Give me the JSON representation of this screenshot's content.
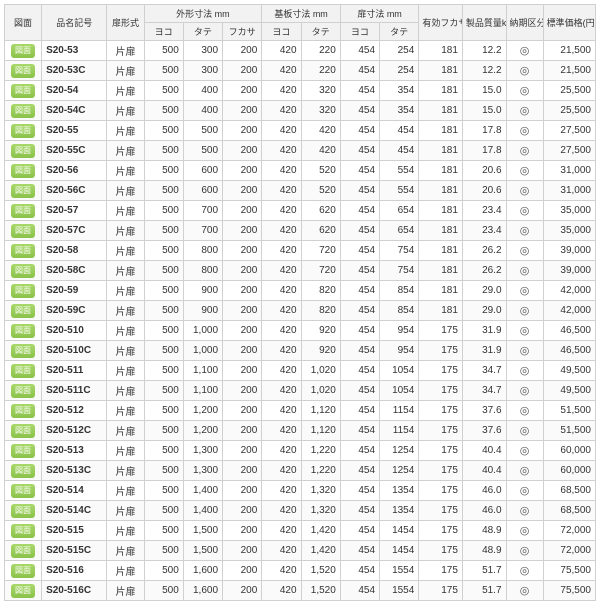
{
  "headers": {
    "drawing": "図面",
    "name": "品名記号",
    "door": "扉形式",
    "outer": "外形寸法 mm",
    "base": "基板寸法 mm",
    "door_dim": "扉寸法 mm",
    "effective": "有効フカサ mm*",
    "weight": "製品質量kg",
    "delivery": "納期区分",
    "price": "標準価格(円)",
    "yoko": "ヨコ",
    "tate": "タテ",
    "fukasa": "フカサ"
  },
  "btn_label": "図面",
  "door_type": "片扉",
  "delivery_mark": "◎",
  "rows": [
    {
      "name": "S20-53",
      "o": [
        500,
        300,
        200
      ],
      "b": [
        420,
        220
      ],
      "d": [
        454,
        254
      ],
      "eff": 181,
      "wt": "12.2",
      "price": "21,500"
    },
    {
      "name": "S20-53C",
      "o": [
        500,
        300,
        200
      ],
      "b": [
        420,
        220
      ],
      "d": [
        454,
        254
      ],
      "eff": 181,
      "wt": "12.2",
      "price": "21,500"
    },
    {
      "name": "S20-54",
      "o": [
        500,
        400,
        200
      ],
      "b": [
        420,
        320
      ],
      "d": [
        454,
        354
      ],
      "eff": 181,
      "wt": "15.0",
      "price": "25,500"
    },
    {
      "name": "S20-54C",
      "o": [
        500,
        400,
        200
      ],
      "b": [
        420,
        320
      ],
      "d": [
        454,
        354
      ],
      "eff": 181,
      "wt": "15.0",
      "price": "25,500"
    },
    {
      "name": "S20-55",
      "o": [
        500,
        500,
        200
      ],
      "b": [
        420,
        420
      ],
      "d": [
        454,
        454
      ],
      "eff": 181,
      "wt": "17.8",
      "price": "27,500"
    },
    {
      "name": "S20-55C",
      "o": [
        500,
        500,
        200
      ],
      "b": [
        420,
        420
      ],
      "d": [
        454,
        454
      ],
      "eff": 181,
      "wt": "17.8",
      "price": "27,500"
    },
    {
      "name": "S20-56",
      "o": [
        500,
        600,
        200
      ],
      "b": [
        420,
        520
      ],
      "d": [
        454,
        554
      ],
      "eff": 181,
      "wt": "20.6",
      "price": "31,000"
    },
    {
      "name": "S20-56C",
      "o": [
        500,
        600,
        200
      ],
      "b": [
        420,
        520
      ],
      "d": [
        454,
        554
      ],
      "eff": 181,
      "wt": "20.6",
      "price": "31,000"
    },
    {
      "name": "S20-57",
      "o": [
        500,
        700,
        200
      ],
      "b": [
        420,
        620
      ],
      "d": [
        454,
        654
      ],
      "eff": 181,
      "wt": "23.4",
      "price": "35,000"
    },
    {
      "name": "S20-57C",
      "o": [
        500,
        700,
        200
      ],
      "b": [
        420,
        620
      ],
      "d": [
        454,
        654
      ],
      "eff": 181,
      "wt": "23.4",
      "price": "35,000"
    },
    {
      "name": "S20-58",
      "o": [
        500,
        800,
        200
      ],
      "b": [
        420,
        720
      ],
      "d": [
        454,
        754
      ],
      "eff": 181,
      "wt": "26.2",
      "price": "39,000"
    },
    {
      "name": "S20-58C",
      "o": [
        500,
        800,
        200
      ],
      "b": [
        420,
        720
      ],
      "d": [
        454,
        754
      ],
      "eff": 181,
      "wt": "26.2",
      "price": "39,000"
    },
    {
      "name": "S20-59",
      "o": [
        500,
        900,
        200
      ],
      "b": [
        420,
        820
      ],
      "d": [
        454,
        854
      ],
      "eff": 181,
      "wt": "29.0",
      "price": "42,000"
    },
    {
      "name": "S20-59C",
      "o": [
        500,
        900,
        200
      ],
      "b": [
        420,
        820
      ],
      "d": [
        454,
        854
      ],
      "eff": 181,
      "wt": "29.0",
      "price": "42,000"
    },
    {
      "name": "S20-510",
      "o": [
        500,
        "1,000",
        200
      ],
      "b": [
        420,
        920
      ],
      "d": [
        454,
        954
      ],
      "eff": 175,
      "wt": "31.9",
      "price": "46,500"
    },
    {
      "name": "S20-510C",
      "o": [
        500,
        "1,000",
        200
      ],
      "b": [
        420,
        920
      ],
      "d": [
        454,
        954
      ],
      "eff": 175,
      "wt": "31.9",
      "price": "46,500"
    },
    {
      "name": "S20-511",
      "o": [
        500,
        "1,100",
        200
      ],
      "b": [
        420,
        "1,020"
      ],
      "d": [
        454,
        1054
      ],
      "eff": 175,
      "wt": "34.7",
      "price": "49,500"
    },
    {
      "name": "S20-511C",
      "o": [
        500,
        "1,100",
        200
      ],
      "b": [
        420,
        "1,020"
      ],
      "d": [
        454,
        1054
      ],
      "eff": 175,
      "wt": "34.7",
      "price": "49,500"
    },
    {
      "name": "S20-512",
      "o": [
        500,
        "1,200",
        200
      ],
      "b": [
        420,
        "1,120"
      ],
      "d": [
        454,
        1154
      ],
      "eff": 175,
      "wt": "37.6",
      "price": "51,500"
    },
    {
      "name": "S20-512C",
      "o": [
        500,
        "1,200",
        200
      ],
      "b": [
        420,
        "1,120"
      ],
      "d": [
        454,
        1154
      ],
      "eff": 175,
      "wt": "37.6",
      "price": "51,500"
    },
    {
      "name": "S20-513",
      "o": [
        500,
        "1,300",
        200
      ],
      "b": [
        420,
        "1,220"
      ],
      "d": [
        454,
        1254
      ],
      "eff": 175,
      "wt": "40.4",
      "price": "60,000"
    },
    {
      "name": "S20-513C",
      "o": [
        500,
        "1,300",
        200
      ],
      "b": [
        420,
        "1,220"
      ],
      "d": [
        454,
        1254
      ],
      "eff": 175,
      "wt": "40.4",
      "price": "60,000"
    },
    {
      "name": "S20-514",
      "o": [
        500,
        "1,400",
        200
      ],
      "b": [
        420,
        "1,320"
      ],
      "d": [
        454,
        1354
      ],
      "eff": 175,
      "wt": "46.0",
      "price": "68,500"
    },
    {
      "name": "S20-514C",
      "o": [
        500,
        "1,400",
        200
      ],
      "b": [
        420,
        "1,320"
      ],
      "d": [
        454,
        1354
      ],
      "eff": 175,
      "wt": "46.0",
      "price": "68,500"
    },
    {
      "name": "S20-515",
      "o": [
        500,
        "1,500",
        200
      ],
      "b": [
        420,
        "1,420"
      ],
      "d": [
        454,
        1454
      ],
      "eff": 175,
      "wt": "48.9",
      "price": "72,000"
    },
    {
      "name": "S20-515C",
      "o": [
        500,
        "1,500",
        200
      ],
      "b": [
        420,
        "1,420"
      ],
      "d": [
        454,
        1454
      ],
      "eff": 175,
      "wt": "48.9",
      "price": "72,000"
    },
    {
      "name": "S20-516",
      "o": [
        500,
        "1,600",
        200
      ],
      "b": [
        420,
        "1,520"
      ],
      "d": [
        454,
        1554
      ],
      "eff": 175,
      "wt": "51.7",
      "price": "75,500"
    },
    {
      "name": "S20-516C",
      "o": [
        500,
        "1,600",
        200
      ],
      "b": [
        420,
        "1,520"
      ],
      "d": [
        454,
        1554
      ],
      "eff": 175,
      "wt": "51.7",
      "price": "75,500"
    }
  ]
}
